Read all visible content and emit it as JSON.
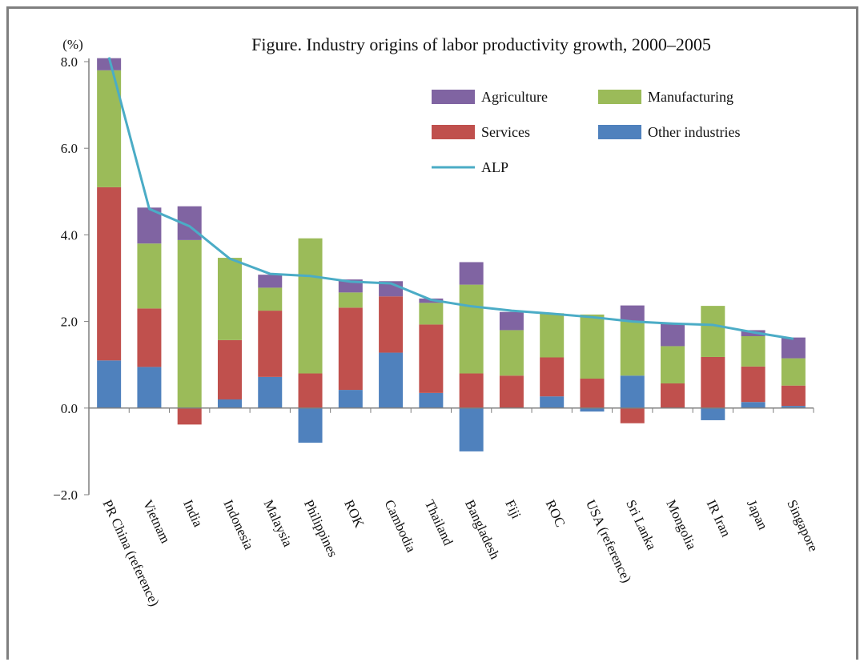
{
  "chart_data": {
    "type": "bar",
    "stacked": true,
    "title": "Figure. Industry origins of labor productivity growth, 2000–2005",
    "ylabel": "(%)",
    "ylim": [
      -2.0,
      8.0
    ],
    "yticks": [
      "8.0",
      "6.0",
      "4.0",
      "2.0",
      "0.0",
      "−2.0"
    ],
    "grid": false,
    "legend_position": "top-right",
    "categories": [
      "PR China (reference)",
      "Vietnam",
      "India",
      "Indonesia",
      "Malaysia",
      "Philippines",
      "ROK",
      "Cambodia",
      "Thailand",
      "Bangladesh",
      "Fiji",
      "ROC",
      "USA (reference)",
      "Sri Lanka",
      "Mongolia",
      "IR Iran",
      "Japan",
      "Singapore"
    ],
    "series": [
      {
        "name": "Other industries",
        "color": "#4f81bd",
        "values": [
          1.1,
          0.95,
          0.0,
          0.2,
          0.72,
          -0.8,
          0.42,
          1.28,
          0.35,
          -1.0,
          0.0,
          0.27,
          -0.08,
          0.75,
          0.0,
          -0.28,
          0.14,
          0.05
        ]
      },
      {
        "name": "Services",
        "color": "#c0504d",
        "values": [
          4.0,
          1.35,
          -0.38,
          1.37,
          1.53,
          0.8,
          1.9,
          1.3,
          1.58,
          0.8,
          0.75,
          0.9,
          0.68,
          -0.35,
          0.57,
          1.18,
          0.82,
          0.47
        ]
      },
      {
        "name": "Manufacturing",
        "color": "#9bbb59",
        "values": [
          2.7,
          1.5,
          3.88,
          1.9,
          0.53,
          3.12,
          0.35,
          0.0,
          0.5,
          2.05,
          1.05,
          1.02,
          1.48,
          1.25,
          0.86,
          1.18,
          0.7,
          0.63
        ]
      },
      {
        "name": "Agriculture",
        "color": "#8064a2",
        "values": [
          0.28,
          0.83,
          0.78,
          0.0,
          0.3,
          0.0,
          0.3,
          0.35,
          0.1,
          0.52,
          0.42,
          0.0,
          0.0,
          0.37,
          0.52,
          0.0,
          0.14,
          0.48
        ]
      }
    ],
    "line": {
      "name": "ALP",
      "color": "#4bacc6",
      "values": [
        8.1,
        4.6,
        4.2,
        3.45,
        3.1,
        3.05,
        2.92,
        2.88,
        2.5,
        2.35,
        2.25,
        2.18,
        2.1,
        2.0,
        1.95,
        1.92,
        1.75,
        1.6
      ]
    },
    "legend": [
      {
        "label": "Agriculture",
        "kind": "box",
        "color": "#8064a2"
      },
      {
        "label": "Manufacturing",
        "kind": "box",
        "color": "#9bbb59"
      },
      {
        "label": "Services",
        "kind": "box",
        "color": "#c0504d"
      },
      {
        "label": "Other industries",
        "kind": "box",
        "color": "#4f81bd"
      },
      {
        "label": "ALP",
        "kind": "line",
        "color": "#4bacc6"
      }
    ]
  }
}
